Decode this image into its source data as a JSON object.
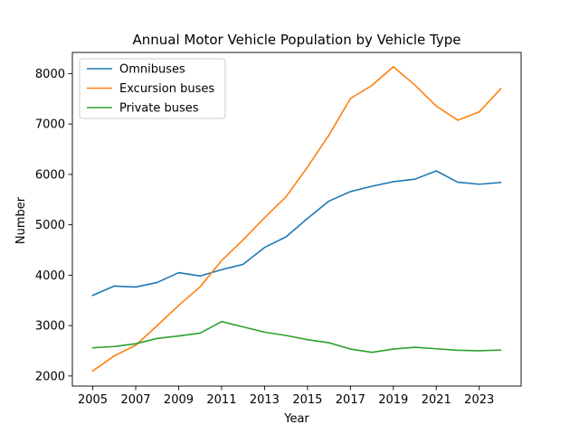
{
  "chart_data": {
    "type": "line",
    "title": "Annual Motor Vehicle Population by Vehicle Type",
    "xlabel": "Year",
    "ylabel": "Number",
    "x": [
      2005,
      2006,
      2007,
      2008,
      2009,
      2010,
      2011,
      2012,
      2013,
      2014,
      2015,
      2016,
      2017,
      2018,
      2019,
      2020,
      2021,
      2022,
      2023,
      2024
    ],
    "xticks": [
      2005,
      2007,
      2009,
      2011,
      2013,
      2015,
      2017,
      2019,
      2021,
      2023
    ],
    "yticks": [
      2000,
      3000,
      4000,
      5000,
      6000,
      7000,
      8000
    ],
    "xlim": [
      2004.05,
      2024.95
    ],
    "ylim": [
      1800,
      8420
    ],
    "grid": false,
    "legend_position": "top-left",
    "series": [
      {
        "name": "Omnibuses",
        "color": "#1f77b4",
        "values": [
          3600,
          3785,
          3765,
          3855,
          4050,
          3985,
          4110,
          4215,
          4550,
          4760,
          5125,
          5470,
          5660,
          5765,
          5855,
          5905,
          6070,
          5845,
          5805,
          5840
        ]
      },
      {
        "name": "Excursion buses",
        "color": "#ff7f0e",
        "values": [
          2100,
          2400,
          2610,
          3000,
          3400,
          3770,
          4290,
          4700,
          5140,
          5555,
          6145,
          6780,
          7505,
          7765,
          8135,
          7775,
          7355,
          7075,
          7240,
          7700
        ]
      },
      {
        "name": "Private buses",
        "color": "#2ca02c",
        "values": [
          2560,
          2585,
          2640,
          2745,
          2795,
          2850,
          3080,
          2975,
          2870,
          2805,
          2720,
          2660,
          2535,
          2470,
          2535,
          2570,
          2540,
          2510,
          2500,
          2515
        ]
      }
    ]
  }
}
